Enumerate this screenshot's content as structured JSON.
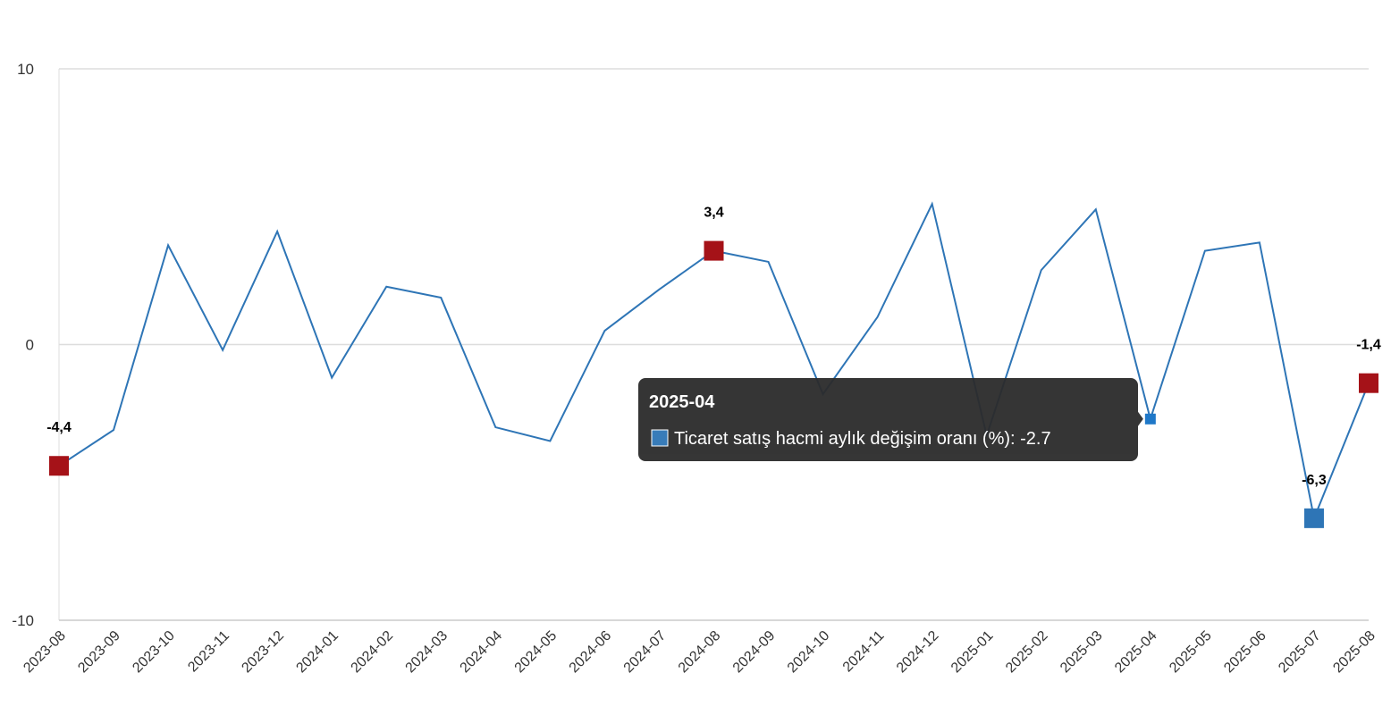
{
  "chart_data": {
    "type": "line",
    "categories": [
      "2023-08",
      "2023-09",
      "2023-10",
      "2023-11",
      "2023-12",
      "2024-01",
      "2024-02",
      "2024-03",
      "2024-04",
      "2024-05",
      "2024-06",
      "2024-07",
      "2024-08",
      "2024-09",
      "2024-10",
      "2024-11",
      "2024-12",
      "2025-01",
      "2025-02",
      "2025-03",
      "2025-04",
      "2025-05",
      "2025-06",
      "2025-07",
      "2025-08"
    ],
    "values": [
      -4.4,
      -3.1,
      3.6,
      -0.2,
      4.1,
      -1.2,
      2.1,
      1.7,
      -3.0,
      -3.5,
      0.5,
      2.0,
      3.4,
      3.0,
      -1.8,
      1.0,
      5.1,
      -3.3,
      2.7,
      4.9,
      -2.7,
      3.4,
      3.7,
      -6.3,
      -1.4
    ],
    "value_labels": [
      "-4,4",
      null,
      null,
      null,
      null,
      null,
      null,
      null,
      null,
      null,
      null,
      null,
      "3,4",
      null,
      null,
      null,
      null,
      null,
      null,
      null,
      null,
      null,
      null,
      "-6,3",
      "-1,4"
    ],
    "color": "#2e75b6",
    "marker_colors": [
      "#a51218",
      null,
      null,
      null,
      null,
      null,
      null,
      null,
      null,
      null,
      null,
      null,
      "#a51218",
      null,
      null,
      null,
      null,
      null,
      null,
      null,
      null,
      null,
      null,
      "#2e75b6",
      "#a51218"
    ],
    "ylim": [
      -10,
      10
    ],
    "yticks": [
      -10,
      0,
      10
    ],
    "tooltip": {
      "title": "2025-04",
      "text": "Ticaret satış hacmi aylık değişim oranı (%): -2.7"
    }
  }
}
